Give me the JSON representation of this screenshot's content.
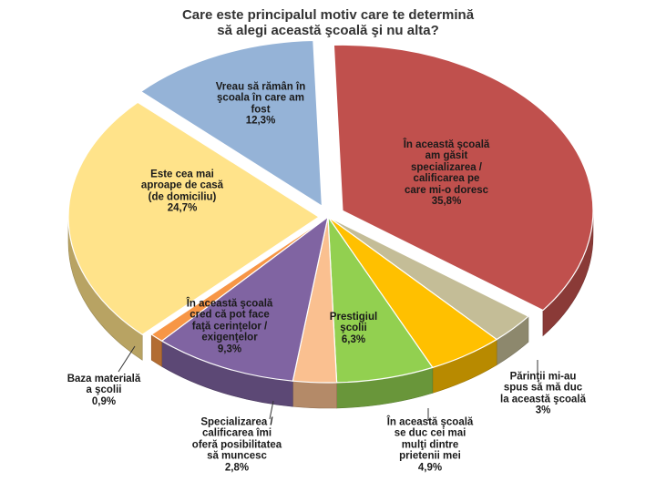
{
  "chart_data": {
    "type": "pie",
    "title": "Care este principalul motiv care te determină\nsă alegi această şcoală şi nu alta?",
    "slices": [
      {
        "label": "În această şcoală\nam găsit\nspecializarea /\ncalificarea pe\ncare mi-o doresc",
        "value": 35.8,
        "value_label": "35,8%",
        "color": "#c0504d"
      },
      {
        "label": "Părinţii mi-au\nspus să mă duc\nla această şcoală",
        "value": 3,
        "value_label": "3%",
        "color": "#c4bd97"
      },
      {
        "label": "În această şcoală\nse duc cei mai\nmulţi dintre\nprietenii mei",
        "value": 4.9,
        "value_label": "4,9%",
        "color": "#ffc000"
      },
      {
        "label": "Prestigiul\nşcolii",
        "value": 6.3,
        "value_label": "6,3%",
        "color": "#92d050"
      },
      {
        "label": "Specializarea /\ncalificarea îmi\noferă posibilitatea\nsă muncesc",
        "value": 2.8,
        "value_label": "2,8%",
        "color": "#fac090"
      },
      {
        "label": "În această şcoală\ncred că pot face\nfaţă cerinţelor /\nexigenţelor",
        "value": 9.3,
        "value_label": "9,3%",
        "color": "#8064a2"
      },
      {
        "label": "Baza materială\na şcolii",
        "value": 0.9,
        "value_label": "0,9%",
        "color": "#f79646"
      },
      {
        "label": "Este cea mai\naproape de casă\n(de domiciliu)",
        "value": 24.7,
        "value_label": "24,7%",
        "color": "#ffe38a"
      },
      {
        "label": "Vreau să rămân în\nşcoala în care am\nfost",
        "value": 12.3,
        "value_label": "12,3%",
        "color": "#95b3d7"
      }
    ]
  }
}
